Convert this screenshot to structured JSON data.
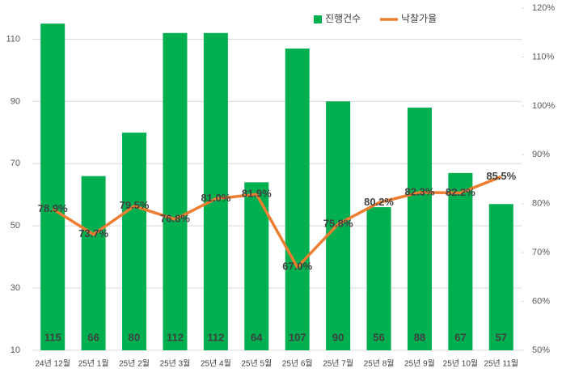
{
  "chart_data": {
    "type": "bar",
    "categories": [
      "24년 12월",
      "25년 1월",
      "25년 2월",
      "25년 3월",
      "25년 4월",
      "25년 5월",
      "25년 6월",
      "25년 7월",
      "25년 8월",
      "25년 9월",
      "25년 10월",
      "25년 11월"
    ],
    "series": [
      {
        "name": "진행건수",
        "type": "bar",
        "color": "#00b050",
        "values": [
          115,
          66,
          80,
          112,
          112,
          64,
          107,
          90,
          56,
          88,
          67,
          57
        ]
      },
      {
        "name": "낙찰가율",
        "type": "line",
        "axis": "y2",
        "color": "#ed7d31",
        "values": [
          78.9,
          73.7,
          79.5,
          76.8,
          81.0,
          81.9,
          67.0,
          75.8,
          80.2,
          82.3,
          82.2,
          85.5
        ],
        "value_labels": [
          "78.9%",
          "73.7%",
          "79.5%",
          "76.8%",
          "81.0%",
          "81.9%",
          "67.0%",
          "75.8%",
          "80.2%",
          "82.3%",
          "82.2%",
          "85.5%"
        ]
      }
    ],
    "ylim": [
      10,
      120
    ],
    "yticks": [
      10,
      30,
      50,
      70,
      90,
      110
    ],
    "y2lim": [
      50,
      120
    ],
    "y2ticks": [
      {
        "value": 50,
        "label": "50%"
      },
      {
        "value": 60,
        "label": "60%"
      },
      {
        "value": 70,
        "label": "70%"
      },
      {
        "value": 80,
        "label": "80%"
      },
      {
        "value": 90,
        "label": "90%"
      },
      {
        "value": 100,
        "label": "100%"
      },
      {
        "value": 110,
        "label": "110%"
      },
      {
        "value": 120,
        "label": "120%"
      }
    ],
    "grid": true,
    "legend": "top"
  }
}
